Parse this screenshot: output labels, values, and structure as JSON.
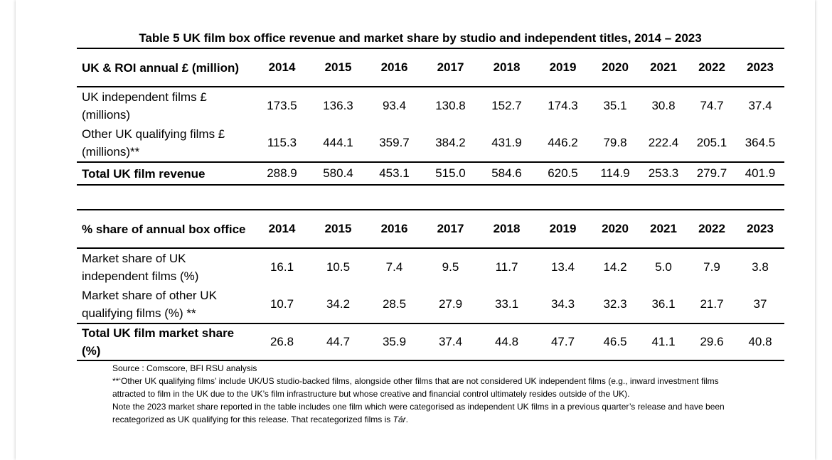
{
  "title": "Table 5 UK film box office revenue and market share by studio and independent titles, 2014 – 2023",
  "years": [
    "2014",
    "2015",
    "2016",
    "2017",
    "2018",
    "2019",
    "2020",
    "2021",
    "2022",
    "2023"
  ],
  "revenue": {
    "header": "UK & ROI annual £ (million)",
    "rows": [
      {
        "label": "UK independent films £ (millions)",
        "values": [
          "173.5",
          "136.3",
          "93.4",
          "130.8",
          "152.7",
          "174.3",
          "35.1",
          "30.8",
          "74.7",
          "37.4"
        ]
      },
      {
        "label": "Other UK qualifying films £ (millions)**",
        "values": [
          "115.3",
          "444.1",
          "359.7",
          "384.2",
          "431.9",
          "446.2",
          "79.8",
          "222.4",
          "205.1",
          "364.5"
        ]
      }
    ],
    "total": {
      "label": "Total UK film revenue",
      "values": [
        "288.9",
        "580.4",
        "453.1",
        "515.0",
        "584.6",
        "620.5",
        "114.9",
        "253.3",
        "279.7",
        "401.9"
      ]
    }
  },
  "share": {
    "header": "% share of annual box office",
    "rows": [
      {
        "label": "Market share of UK independent films (%)",
        "values": [
          "16.1",
          "10.5",
          "7.4",
          "9.5",
          "11.7",
          "13.4",
          "14.2",
          "5.0",
          "7.9",
          "3.8"
        ]
      },
      {
        "label": "Market share of other UK qualifying films (%) **",
        "values": [
          "10.7",
          "34.2",
          "28.5",
          "27.9",
          "33.1",
          "34.3",
          "32.3",
          "36.1",
          "21.7",
          "37"
        ]
      }
    ],
    "total": {
      "label": "Total UK film market share (%)",
      "values": [
        "26.8",
        "44.7",
        "35.9",
        "37.4",
        "44.8",
        "47.7",
        "46.5",
        "41.1",
        "29.6",
        "40.8"
      ]
    }
  },
  "notes": {
    "source": "Source : Comscore, BFI RSU analysis",
    "note1": "**‘Other UK qualifying films’ include UK/US studio-backed films, alongside other films that are not considered UK independent films (e.g., inward investment films attracted to film in the UK due to the UK’s film infrastructure but whose creative and financial control ultimately resides outside of the UK).",
    "note2_prefix": "Note the 2023 market share reported in the table includes one film which were categorised as independent UK films in a previous quarter’s release and have been recategorized as UK qualifying for this release. That recategorized films is ",
    "note2_title": "Tár",
    "note2_suffix": "."
  }
}
